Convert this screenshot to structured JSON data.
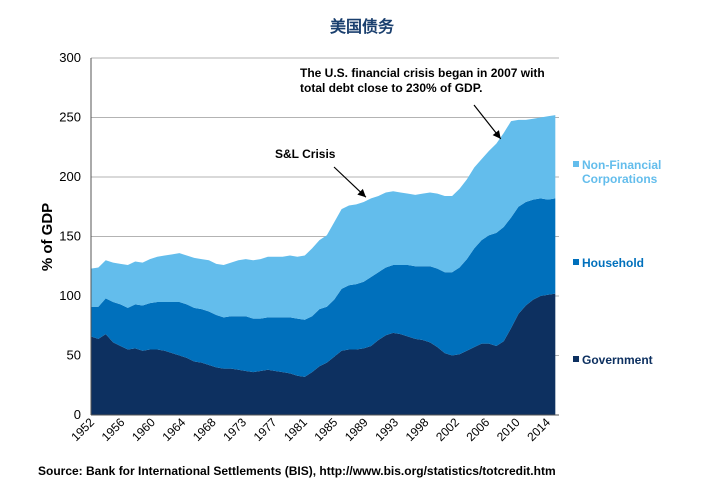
{
  "chart_data": {
    "type": "area",
    "stacked": true,
    "title": "美国债务",
    "ylabel": "% of GDP",
    "xlabel": "",
    "xlim": [
      1952,
      2015.5
    ],
    "ylim": [
      0,
      300
    ],
    "yticks": [
      0,
      50,
      100,
      150,
      200,
      250,
      300
    ],
    "xtick_labels": [
      "1952",
      "1956",
      "1960",
      "1964",
      "1968",
      "1973",
      "1977",
      "1981",
      "1985",
      "1989",
      "1993",
      "1998",
      "2002",
      "2006",
      "2010",
      "2014"
    ],
    "grid": "horizontal",
    "legend_position": "right",
    "x": [
      1952,
      1953,
      1954,
      1955,
      1956,
      1957,
      1958,
      1959,
      1960,
      1961,
      1962,
      1963,
      1964,
      1965,
      1966,
      1967,
      1968,
      1969,
      1970,
      1971,
      1972,
      1973,
      1974,
      1975,
      1976,
      1977,
      1978,
      1979,
      1980,
      1981,
      1982,
      1983,
      1984,
      1985,
      1986,
      1987,
      1988,
      1989,
      1990,
      1991,
      1992,
      1993,
      1994,
      1995,
      1996,
      1997,
      1998,
      1999,
      2000,
      2001,
      2002,
      2003,
      2004,
      2005,
      2006,
      2007,
      2008,
      2009,
      2010,
      2011,
      2012,
      2013,
      2014,
      2015
    ],
    "series": [
      {
        "name": "Government",
        "color": "#0d3060",
        "values": [
          66,
          64,
          68,
          61,
          58,
          55,
          56,
          54,
          55,
          55,
          54,
          52,
          50,
          48,
          45,
          44,
          42,
          40,
          39,
          39,
          38,
          37,
          36,
          37,
          38,
          37,
          36,
          35,
          33,
          32,
          36,
          41,
          44,
          49,
          54,
          55,
          55,
          56,
          58,
          63,
          67,
          69,
          68,
          66,
          64,
          63,
          61,
          57,
          52,
          50,
          51,
          54,
          57,
          60,
          60,
          58,
          62,
          73,
          85,
          92,
          97,
          100,
          101,
          102
        ]
      },
      {
        "name": "Household",
        "color": "#0070bc",
        "values": [
          25,
          27,
          30,
          34,
          35,
          35,
          37,
          38,
          39,
          40,
          41,
          43,
          45,
          45,
          45,
          45,
          45,
          44,
          43,
          44,
          45,
          46,
          45,
          44,
          44,
          45,
          46,
          47,
          48,
          48,
          47,
          48,
          47,
          48,
          52,
          54,
          55,
          56,
          58,
          57,
          57,
          57,
          58,
          60,
          61,
          62,
          64,
          66,
          68,
          70,
          73,
          77,
          83,
          87,
          91,
          95,
          96,
          93,
          90,
          87,
          84,
          82,
          80,
          80
        ]
      },
      {
        "name": "Non-Financial Corporations",
        "label_lines": [
          "Non-Financial",
          "Corporations"
        ],
        "color": "#63bdec",
        "values": [
          32,
          33,
          32,
          33,
          34,
          36,
          36,
          36,
          37,
          38,
          39,
          40,
          41,
          41,
          42,
          42,
          43,
          43,
          44,
          45,
          47,
          48,
          49,
          50,
          51,
          51,
          51,
          52,
          52,
          54,
          57,
          58,
          60,
          65,
          67,
          67,
          67,
          67,
          66,
          64,
          63,
          62,
          61,
          60,
          60,
          61,
          62,
          63,
          64,
          64,
          66,
          67,
          68,
          68,
          71,
          75,
          79,
          81,
          73,
          69,
          68,
          68,
          70,
          70
        ]
      }
    ],
    "annotations": [
      {
        "lines": [
          "The U.S. financial crisis began in 2007 with",
          "total debt close to 230% of GDP."
        ],
        "arrow_to": [
          2007.6,
          232
        ]
      },
      {
        "lines": [
          "S&L Crisis"
        ],
        "arrow_to": [
          1989.3,
          183
        ]
      }
    ],
    "source": "Source: Bank for International Settlements (BIS), http://www.bis.org/statistics/totcredit.htm"
  }
}
